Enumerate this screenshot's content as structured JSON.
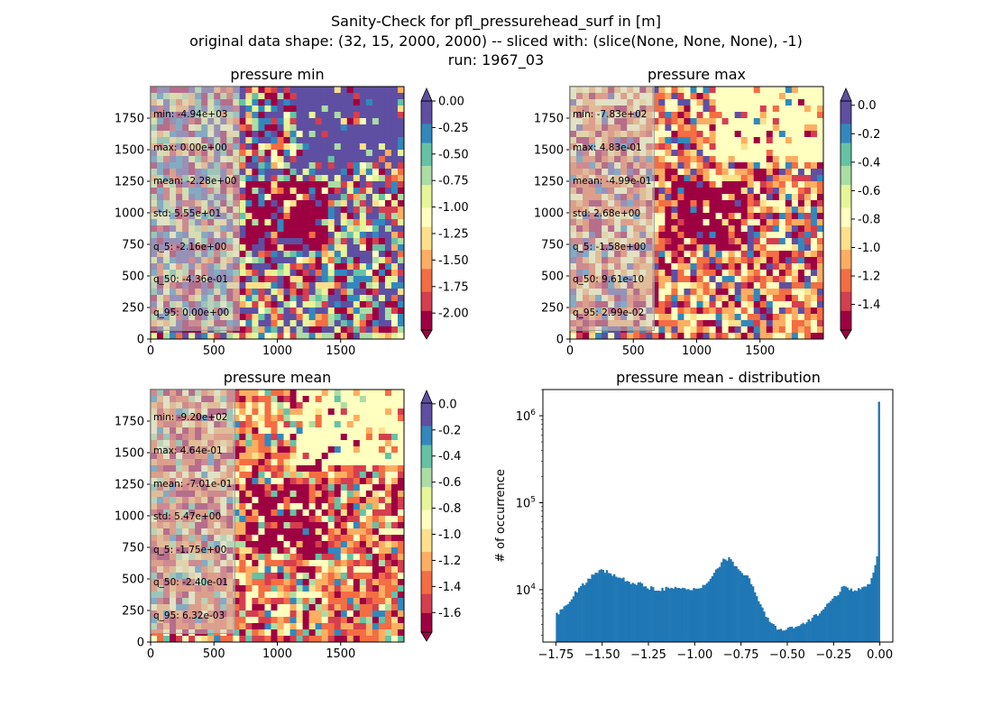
{
  "figure": {
    "suptitle_lines": [
      "Sanity-Check for pfl_pressurehead_surf in [m]",
      "original data shape: (32, 15, 2000, 2000) -- sliced with: (slice(None, None, None), -1)",
      "run: 1967_03"
    ]
  },
  "panels": {
    "min": {
      "title": "pressure min",
      "stats": [
        "min: -4.94e+03",
        "max: 0.00e+00",
        "mean: -2.28e+00",
        "std: 5.55e+01",
        "q_5: -2.16e+00",
        "q_50: -4.36e-01",
        "q_95: 0.00e+00"
      ],
      "cbar_ticks": [
        "0.00",
        "-0.25",
        "-0.50",
        "-0.75",
        "-1.00",
        "-1.25",
        "-1.50",
        "-1.75",
        "-2.00"
      ],
      "cbar_range": [
        -2.16,
        0.0
      ]
    },
    "max": {
      "title": "pressure max",
      "stats": [
        "min: -7.83e+02",
        "max: 4.83e-01",
        "mean: -4.99e-01",
        "std: 2.68e+00",
        "q_5: -1.58e+00",
        "q_50: 9.61e-10",
        "q_95: 2.99e-02"
      ],
      "cbar_ticks": [
        "0.0",
        "-0.2",
        "-0.4",
        "-0.6",
        "-0.8",
        "-1.0",
        "-1.2",
        "-1.4"
      ],
      "cbar_range": [
        -1.58,
        0.03
      ]
    },
    "mean": {
      "title": "pressure mean",
      "stats": [
        "min: -9.20e+02",
        "max: 4.64e-01",
        "mean: -7.01e-01",
        "std: 5.47e+00",
        "q_5: -1.75e+00",
        "q_50: -2.40e-01",
        "q_95: 6.32e-03"
      ],
      "cbar_ticks": [
        "0.0",
        "-0.2",
        "-0.4",
        "-0.6",
        "-0.8",
        "-1.0",
        "-1.2",
        "-1.4",
        "-1.6"
      ],
      "cbar_range": [
        -1.75,
        0.006
      ]
    },
    "map_axes": {
      "x_ticks": [
        "0",
        "500",
        "1000",
        "1500"
      ],
      "y_ticks": [
        "0",
        "250",
        "500",
        "750",
        "1000",
        "1250",
        "1500",
        "1750"
      ]
    }
  },
  "colors": {
    "spectral": [
      "#9e0142",
      "#d53e4f",
      "#f46d43",
      "#fdae61",
      "#fee08b",
      "#ffffbf",
      "#e6f598",
      "#abdda4",
      "#66c2a5",
      "#3288bd",
      "#5e4fa2"
    ],
    "hist_bar": "#1f77b4"
  },
  "chart_data": {
    "type": "bar",
    "title": "pressure mean - distribution",
    "xlabel": "",
    "ylabel": "# of occurrence",
    "x_tick_labels": [
      "-1.75",
      "-1.50",
      "-1.25",
      "-1.00",
      "-0.75",
      "-0.50",
      "-0.25",
      "0.00"
    ],
    "y_tick_labels": [
      "10^4",
      "10^5",
      "10^6"
    ],
    "y_scale": "log",
    "xlim": [
      -1.82,
      0.07
    ],
    "ylim": [
      2500,
      2000000
    ],
    "bin_range": [
      -1.75,
      0.0
    ],
    "x": [
      -1.75,
      -1.7,
      -1.65,
      -1.6,
      -1.55,
      -1.5,
      -1.45,
      -1.4,
      -1.35,
      -1.3,
      -1.25,
      -1.2,
      -1.15,
      -1.1,
      -1.05,
      -1.0,
      -0.95,
      -0.9,
      -0.85,
      -0.82,
      -0.8,
      -0.75,
      -0.7,
      -0.65,
      -0.6,
      -0.56,
      -0.55,
      -0.5,
      -0.45,
      -0.4,
      -0.35,
      -0.3,
      -0.25,
      -0.2,
      -0.15,
      -0.1,
      -0.06,
      -0.04,
      -0.02,
      -0.01,
      0.0
    ],
    "values": [
      5000,
      6600,
      9000,
      11500,
      14500,
      17000,
      15200,
      13400,
      12400,
      11600,
      10700,
      10200,
      10300,
      10200,
      10100,
      10000,
      11200,
      15000,
      21500,
      23000,
      21000,
      16500,
      13000,
      7000,
      4400,
      3600,
      3400,
      3500,
      3700,
      4100,
      5000,
      6200,
      8000,
      10500,
      10000,
      10300,
      11200,
      13500,
      20000,
      30000,
      1450000
    ]
  }
}
